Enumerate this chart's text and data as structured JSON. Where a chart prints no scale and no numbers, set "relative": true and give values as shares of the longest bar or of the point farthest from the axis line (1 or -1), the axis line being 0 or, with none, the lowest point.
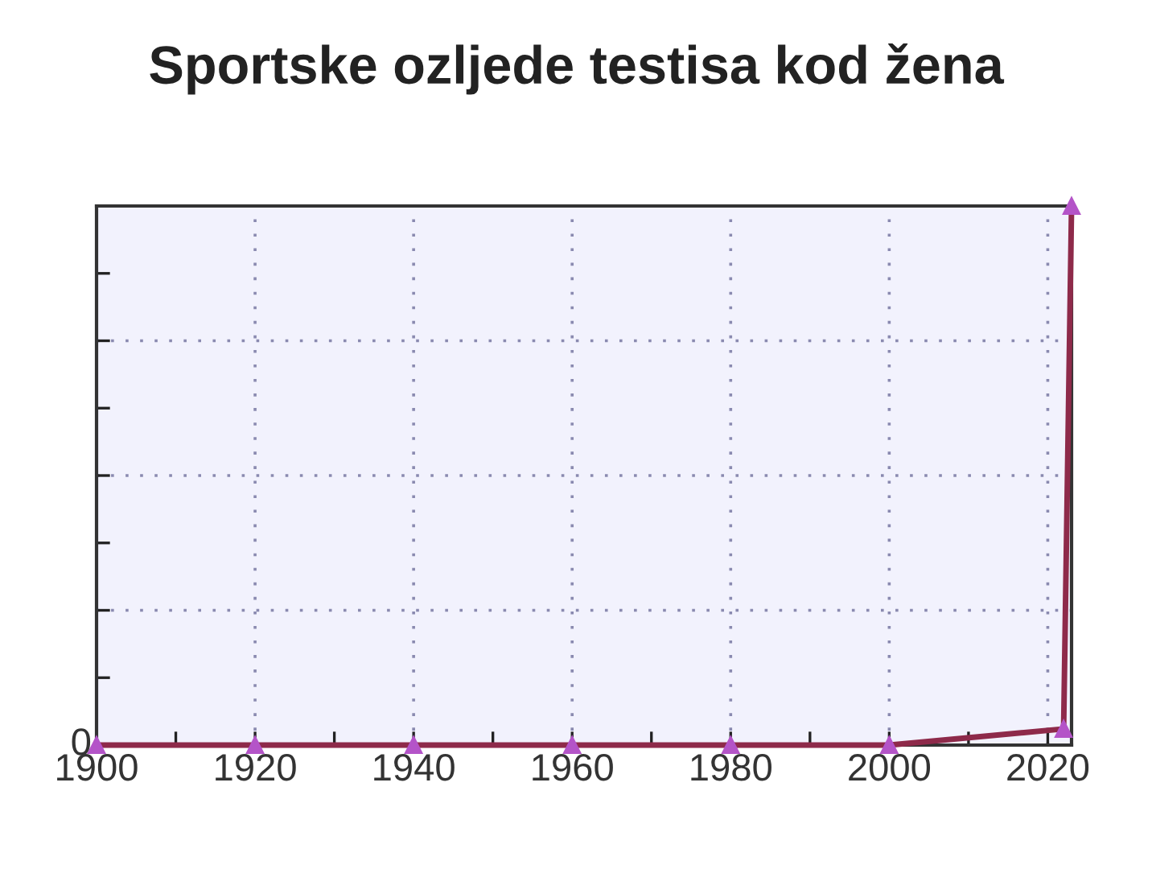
{
  "chart_data": {
    "type": "line",
    "title": "Sportske ozljede testisa kod žena",
    "x": [
      1900,
      1920,
      1940,
      1960,
      1980,
      2000,
      2022,
      2023
    ],
    "series": [
      {
        "color": "#8e2a4a",
        "values": [
          0,
          0,
          0,
          0,
          0,
          0,
          0.03,
          1
        ]
      }
    ],
    "relative": true,
    "xlim": [
      1900,
      2023
    ],
    "xticks": [
      1900,
      {
        "value": 1910,
        "label": null
      },
      1920,
      {
        "value": 1930,
        "label": null
      },
      1940,
      {
        "value": 1950,
        "label": null
      },
      1960,
      {
        "value": 1970,
        "label": null
      },
      1980,
      {
        "value": 1990,
        "label": null
      },
      2000,
      {
        "value": 2010,
        "label": null
      },
      2020
    ],
    "annotations": [
      "0"
    ],
    "grid": true,
    "marker": "triangle",
    "line_style": "solid",
    "legend": false
  }
}
